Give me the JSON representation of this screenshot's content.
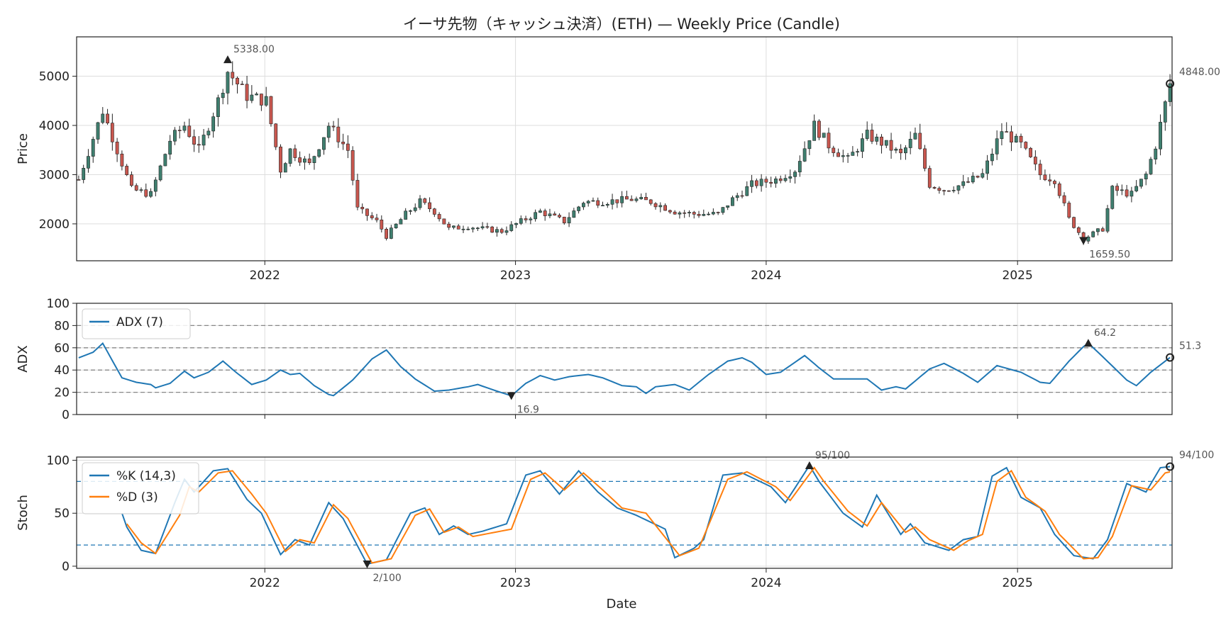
{
  "chart_data": {
    "type": "candlestick",
    "title": "イーサ先物（キャッシュ決済）(ETH) — Weekly Price (Candle)",
    "x_start": "2021-04-05",
    "x_end": "2025-08-11",
    "x_ticks": [
      "2022-01-01",
      "2023-01-01",
      "2024-01-01",
      "2025-01-01"
    ],
    "x_tick_labels": [
      "2022",
      "2023",
      "2024",
      "2025"
    ],
    "xlabel": "Date",
    "colors": {
      "up": "#3f7f6f",
      "down": "#c9574f",
      "adx": "#1f77b4",
      "k": "#1f77b4",
      "d": "#ff7f0e",
      "grid": "#dddddd",
      "ref_gray": "#888888",
      "ref_blue": "#1f77b4"
    },
    "price": {
      "ylabel": "Price",
      "ylim": [
        1250,
        5800
      ],
      "yticks": [
        2000,
        3000,
        4000,
        5000
      ],
      "anchors": [
        [
          "2021-04-05",
          2900
        ],
        [
          "2021-05-10",
          4300
        ],
        [
          "2021-06-21",
          2700
        ],
        [
          "2021-07-19",
          2600
        ],
        [
          "2021-08-16",
          3700
        ],
        [
          "2021-09-06",
          4000
        ],
        [
          "2021-09-27",
          3500
        ],
        [
          "2021-10-25",
          4500
        ],
        [
          "2021-11-08",
          5100
        ],
        [
          "2021-12-06",
          4600
        ],
        [
          "2022-01-03",
          4500
        ],
        [
          "2022-01-24",
          3100
        ],
        [
          "2022-02-07",
          3500
        ],
        [
          "2022-03-07",
          3200
        ],
        [
          "2022-04-04",
          4000
        ],
        [
          "2022-05-02",
          3500
        ],
        [
          "2022-05-16",
          2300
        ],
        [
          "2022-06-13",
          2050
        ],
        [
          "2022-06-27",
          1750
        ],
        [
          "2022-07-25",
          2200
        ],
        [
          "2022-08-15",
          2450
        ],
        [
          "2022-09-05",
          2250
        ],
        [
          "2022-09-26",
          1900
        ],
        [
          "2022-10-24",
          1950
        ],
        [
          "2022-11-14",
          1900
        ],
        [
          "2022-12-12",
          1850
        ],
        [
          "2023-01-09",
          2050
        ],
        [
          "2023-02-06",
          2250
        ],
        [
          "2023-03-13",
          2050
        ],
        [
          "2023-04-10",
          2450
        ],
        [
          "2023-05-08",
          2450
        ],
        [
          "2023-06-19",
          2500
        ],
        [
          "2023-07-17",
          2450
        ],
        [
          "2023-08-21",
          2250
        ],
        [
          "2023-09-18",
          2200
        ],
        [
          "2023-10-23",
          2200
        ],
        [
          "2023-11-13",
          2500
        ],
        [
          "2023-12-11",
          2800
        ],
        [
          "2024-01-15",
          2900
        ],
        [
          "2024-02-12",
          3100
        ],
        [
          "2024-03-11",
          4000
        ],
        [
          "2024-04-01",
          3600
        ],
        [
          "2024-04-29",
          3300
        ],
        [
          "2024-05-27",
          3800
        ],
        [
          "2024-06-24",
          3600
        ],
        [
          "2024-07-15",
          3400
        ],
        [
          "2024-08-05",
          3800
        ],
        [
          "2024-08-26",
          2800
        ],
        [
          "2024-09-16",
          2700
        ],
        [
          "2024-10-14",
          2800
        ],
        [
          "2024-11-11",
          3000
        ],
        [
          "2024-12-09",
          3900
        ],
        [
          "2025-01-06",
          3600
        ],
        [
          "2025-02-03",
          3000
        ],
        [
          "2025-02-24",
          2900
        ],
        [
          "2025-03-17",
          2100
        ],
        [
          "2025-04-07",
          1700
        ],
        [
          "2025-05-05",
          1900
        ],
        [
          "2025-05-19",
          2700
        ],
        [
          "2025-06-16",
          2600
        ],
        [
          "2025-07-07",
          3000
        ],
        [
          "2025-07-21",
          3600
        ],
        [
          "2025-08-11",
          4848
        ]
      ],
      "annotations": [
        {
          "date": "2021-11-08",
          "value": 5338.0,
          "label": "5338.00",
          "marker": "up"
        },
        {
          "date": "2025-04-07",
          "value": 1659.5,
          "label": "1659.50",
          "marker": "down"
        },
        {
          "date": "2025-08-11",
          "value": 4848.0,
          "label": "4848.00",
          "marker": "circle"
        }
      ]
    },
    "adx": {
      "ylabel": "ADX",
      "ylim": [
        0,
        100
      ],
      "yticks": [
        0,
        20,
        40,
        60,
        80,
        100
      ],
      "ref_lines": [
        20,
        40,
        60,
        80
      ],
      "legend": [
        "ADX (7)"
      ],
      "anchors": [
        [
          "2021-04-05",
          51
        ],
        [
          "2021-04-26",
          56
        ],
        [
          "2021-05-10",
          64
        ],
        [
          "2021-06-07",
          33
        ],
        [
          "2021-06-28",
          29
        ],
        [
          "2021-07-19",
          27
        ],
        [
          "2021-07-26",
          24
        ],
        [
          "2021-08-16",
          28
        ],
        [
          "2021-09-06",
          39
        ],
        [
          "2021-09-20",
          33
        ],
        [
          "2021-10-11",
          38
        ],
        [
          "2021-11-01",
          48
        ],
        [
          "2021-11-22",
          37
        ],
        [
          "2021-12-13",
          27
        ],
        [
          "2022-01-03",
          31
        ],
        [
          "2022-01-24",
          40
        ],
        [
          "2022-02-07",
          36
        ],
        [
          "2022-02-21",
          37
        ],
        [
          "2022-03-14",
          26
        ],
        [
          "2022-04-04",
          18
        ],
        [
          "2022-04-11",
          17
        ],
        [
          "2022-05-09",
          31
        ],
        [
          "2022-06-06",
          50
        ],
        [
          "2022-06-27",
          58
        ],
        [
          "2022-07-18",
          43
        ],
        [
          "2022-08-08",
          32
        ],
        [
          "2022-09-05",
          21
        ],
        [
          "2022-09-26",
          22
        ],
        [
          "2022-10-24",
          25
        ],
        [
          "2022-11-07",
          27
        ],
        [
          "2022-12-05",
          21
        ],
        [
          "2022-12-26",
          16.9
        ],
        [
          "2023-01-16",
          28
        ],
        [
          "2023-02-06",
          35
        ],
        [
          "2023-02-27",
          31
        ],
        [
          "2023-03-20",
          34
        ],
        [
          "2023-04-17",
          36
        ],
        [
          "2023-05-08",
          33
        ],
        [
          "2023-06-05",
          26
        ],
        [
          "2023-06-26",
          25
        ],
        [
          "2023-07-10",
          19
        ],
        [
          "2023-07-24",
          25
        ],
        [
          "2023-08-21",
          27
        ],
        [
          "2023-09-11",
          22
        ],
        [
          "2023-10-09",
          36
        ],
        [
          "2023-11-06",
          48
        ],
        [
          "2023-11-27",
          51
        ],
        [
          "2023-12-11",
          47
        ],
        [
          "2024-01-01",
          36
        ],
        [
          "2024-01-22",
          38
        ],
        [
          "2024-02-26",
          53
        ],
        [
          "2024-03-18",
          42
        ],
        [
          "2024-04-08",
          32
        ],
        [
          "2024-05-27",
          32
        ],
        [
          "2024-06-17",
          22
        ],
        [
          "2024-07-08",
          25
        ],
        [
          "2024-07-22",
          23
        ],
        [
          "2024-08-26",
          41
        ],
        [
          "2024-09-16",
          46
        ],
        [
          "2024-10-14",
          37
        ],
        [
          "2024-11-04",
          29
        ],
        [
          "2024-12-02",
          44
        ],
        [
          "2025-01-06",
          38
        ],
        [
          "2025-02-03",
          29
        ],
        [
          "2025-02-17",
          28
        ],
        [
          "2025-03-17",
          48
        ],
        [
          "2025-04-07",
          61
        ],
        [
          "2025-04-14",
          64.2
        ],
        [
          "2025-05-05",
          52
        ],
        [
          "2025-06-09",
          31
        ],
        [
          "2025-06-23",
          26
        ],
        [
          "2025-07-14",
          38
        ],
        [
          "2025-08-11",
          51.3
        ]
      ],
      "annotations": [
        {
          "date": "2022-12-26",
          "value": 16.9,
          "label": "16.9",
          "marker": "down"
        },
        {
          "date": "2025-04-14",
          "value": 64.2,
          "label": "64.2",
          "marker": "up"
        },
        {
          "date": "2025-08-11",
          "value": 51.3,
          "label": "51.3",
          "marker": "circle"
        }
      ]
    },
    "stoch": {
      "ylabel": "Stoch",
      "ylim": [
        -2,
        103
      ],
      "yticks": [
        0,
        50,
        100
      ],
      "ref_lines": [
        20,
        80
      ],
      "legend": [
        "%K (14,3)",
        "%D (3)"
      ],
      "k_anchors": [
        [
          "2021-06-07",
          50
        ],
        [
          "2021-06-14",
          37
        ],
        [
          "2021-07-05",
          15
        ],
        [
          "2021-07-26",
          12
        ],
        [
          "2021-08-23",
          60
        ],
        [
          "2021-09-06",
          82
        ],
        [
          "2021-09-20",
          70
        ],
        [
          "2021-10-18",
          90
        ],
        [
          "2021-11-08",
          92
        ],
        [
          "2021-12-06",
          63
        ],
        [
          "2021-12-27",
          50
        ],
        [
          "2022-01-24",
          11
        ],
        [
          "2022-02-14",
          25
        ],
        [
          "2022-03-07",
          20
        ],
        [
          "2022-04-04",
          60
        ],
        [
          "2022-04-25",
          45
        ],
        [
          "2022-05-30",
          2
        ],
        [
          "2022-06-27",
          6
        ],
        [
          "2022-08-01",
          50
        ],
        [
          "2022-08-22",
          55
        ],
        [
          "2022-09-12",
          30
        ],
        [
          "2022-10-03",
          38
        ],
        [
          "2022-10-24",
          30
        ],
        [
          "2022-11-14",
          33
        ],
        [
          "2022-12-19",
          40
        ],
        [
          "2023-01-16",
          86
        ],
        [
          "2023-02-06",
          90
        ],
        [
          "2023-03-06",
          68
        ],
        [
          "2023-04-03",
          90
        ],
        [
          "2023-05-01",
          70
        ],
        [
          "2023-05-29",
          55
        ],
        [
          "2023-06-26",
          48
        ],
        [
          "2023-08-07",
          35
        ],
        [
          "2023-08-21",
          8
        ],
        [
          "2023-09-18",
          17
        ],
        [
          "2023-10-02",
          25
        ],
        [
          "2023-10-30",
          86
        ],
        [
          "2023-11-27",
          88
        ],
        [
          "2024-01-08",
          75
        ],
        [
          "2024-01-29",
          60
        ],
        [
          "2024-03-04",
          95
        ],
        [
          "2024-03-18",
          80
        ],
        [
          "2024-04-22",
          50
        ],
        [
          "2024-05-20",
          37
        ],
        [
          "2024-06-10",
          67
        ],
        [
          "2024-07-15",
          30
        ],
        [
          "2024-07-29",
          40
        ],
        [
          "2024-08-19",
          22
        ],
        [
          "2024-09-23",
          15
        ],
        [
          "2024-10-14",
          25
        ],
        [
          "2024-11-04",
          28
        ],
        [
          "2024-11-25",
          85
        ],
        [
          "2024-12-16",
          93
        ],
        [
          "2025-01-06",
          65
        ],
        [
          "2025-02-03",
          55
        ],
        [
          "2025-02-24",
          30
        ],
        [
          "2025-03-24",
          10
        ],
        [
          "2025-04-21",
          7
        ],
        [
          "2025-05-12",
          25
        ],
        [
          "2025-06-09",
          78
        ],
        [
          "2025-07-07",
          70
        ],
        [
          "2025-07-28",
          93
        ],
        [
          "2025-08-11",
          94
        ]
      ],
      "d_anchors": [
        [
          "2021-06-14",
          40
        ],
        [
          "2021-07-05",
          22
        ],
        [
          "2021-07-26",
          12
        ],
        [
          "2021-08-30",
          48
        ],
        [
          "2021-09-13",
          75
        ],
        [
          "2021-09-27",
          70
        ],
        [
          "2021-10-25",
          88
        ],
        [
          "2021-11-15",
          90
        ],
        [
          "2021-12-13",
          68
        ],
        [
          "2022-01-03",
          50
        ],
        [
          "2022-01-31",
          14
        ],
        [
          "2022-02-21",
          25
        ],
        [
          "2022-03-14",
          22
        ],
        [
          "2022-04-11",
          58
        ],
        [
          "2022-05-02",
          45
        ],
        [
          "2022-06-06",
          3
        ],
        [
          "2022-07-04",
          7
        ],
        [
          "2022-08-08",
          48
        ],
        [
          "2022-08-29",
          54
        ],
        [
          "2022-09-19",
          32
        ],
        [
          "2022-10-10",
          37
        ],
        [
          "2022-10-31",
          28
        ],
        [
          "2022-12-26",
          35
        ],
        [
          "2023-01-23",
          82
        ],
        [
          "2023-02-13",
          88
        ],
        [
          "2023-03-13",
          72
        ],
        [
          "2023-04-10",
          88
        ],
        [
          "2023-05-08",
          72
        ],
        [
          "2023-06-05",
          55
        ],
        [
          "2023-07-10",
          50
        ],
        [
          "2023-08-28",
          10
        ],
        [
          "2023-09-25",
          17
        ],
        [
          "2023-11-06",
          82
        ],
        [
          "2023-12-04",
          89
        ],
        [
          "2024-01-15",
          75
        ],
        [
          "2024-02-05",
          62
        ],
        [
          "2024-03-11",
          93
        ],
        [
          "2024-03-25",
          80
        ],
        [
          "2024-04-29",
          52
        ],
        [
          "2024-05-27",
          38
        ],
        [
          "2024-06-17",
          60
        ],
        [
          "2024-07-22",
          32
        ],
        [
          "2024-08-05",
          37
        ],
        [
          "2024-08-26",
          25
        ],
        [
          "2024-09-30",
          15
        ],
        [
          "2024-10-21",
          24
        ],
        [
          "2024-11-11",
          30
        ],
        [
          "2024-12-02",
          80
        ],
        [
          "2024-12-23",
          90
        ],
        [
          "2025-01-13",
          65
        ],
        [
          "2025-02-10",
          52
        ],
        [
          "2025-03-03",
          30
        ],
        [
          "2025-04-07",
          7
        ],
        [
          "2025-04-28",
          8
        ],
        [
          "2025-05-19",
          28
        ],
        [
          "2025-06-16",
          76
        ],
        [
          "2025-07-14",
          72
        ],
        [
          "2025-08-04",
          88
        ],
        [
          "2025-08-11",
          89
        ]
      ],
      "annotations": [
        {
          "date": "2022-05-30",
          "value": 2,
          "label": "2/100",
          "marker": "down"
        },
        {
          "date": "2024-03-04",
          "value": 95,
          "label": "95/100",
          "marker": "up"
        },
        {
          "date": "2025-08-11",
          "value": 94,
          "label": "94/100",
          "marker": "circle"
        }
      ]
    }
  }
}
